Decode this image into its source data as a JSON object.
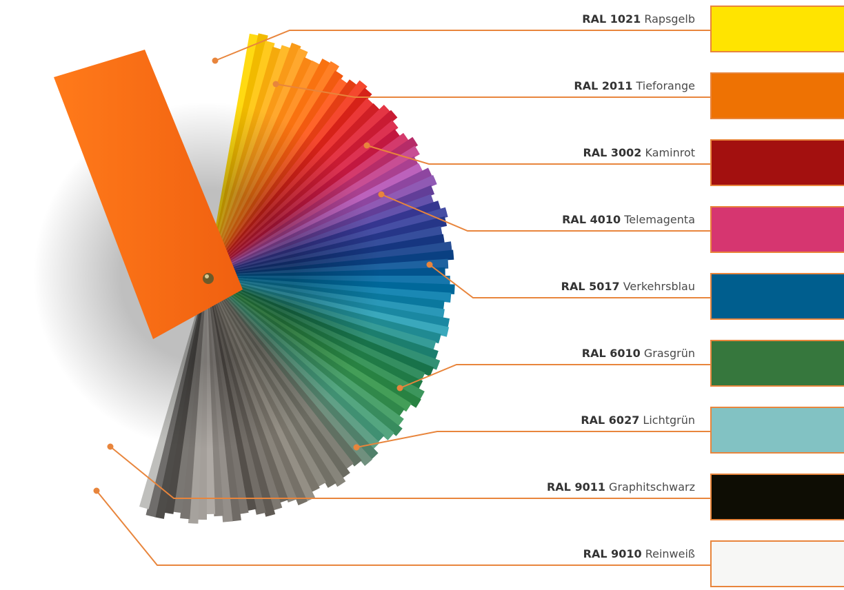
{
  "accent_color": "#e8853c",
  "colors": [
    {
      "code": "RAL 1021",
      "name": "Rapsgelb",
      "hex": "#ffe400"
    },
    {
      "code": "RAL 2011",
      "name": "Tieforange",
      "hex": "#ee7203"
    },
    {
      "code": "RAL 3002",
      "name": "Kaminrot",
      "hex": "#a3100f"
    },
    {
      "code": "RAL 4010",
      "name": "Telemagenta",
      "hex": "#d63670"
    },
    {
      "code": "RAL 5017",
      "name": "Verkehrsblau",
      "hex": "#005e8e"
    },
    {
      "code": "RAL 6010",
      "name": "Grasgrün",
      "hex": "#36773d"
    },
    {
      "code": "RAL 6027",
      "name": "Lichtgrün",
      "hex": "#82c2c3"
    },
    {
      "code": "RAL 9011",
      "name": "Graphitschwarz",
      "hex": "#0e0d04"
    },
    {
      "code": "RAL 9010",
      "name": "Reinweiß",
      "hex": "#f7f7f5"
    }
  ]
}
